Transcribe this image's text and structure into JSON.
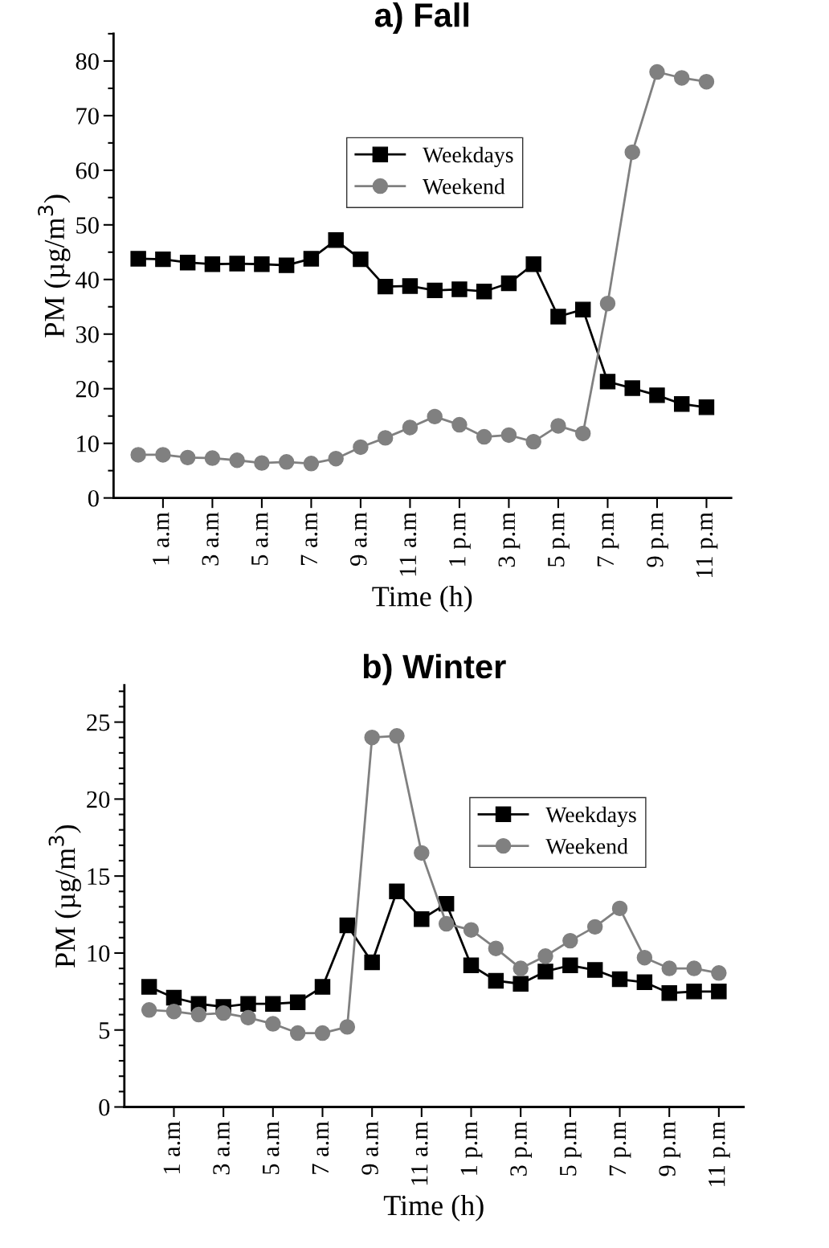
{
  "chart_data": [
    {
      "type": "line",
      "title": "a) Fall",
      "xlabel": "Time (h)",
      "ylabel": "PM (µg/m$^{3}$)",
      "categories": [
        null,
        "1 a.m",
        null,
        "3 a.m",
        null,
        "5 a.m",
        null,
        "7 a.m",
        null,
        "9 a.m",
        null,
        "11 a.m",
        null,
        "1 p.m",
        null,
        "3 p.m",
        null,
        "5 p.m",
        null,
        "7 p.m",
        null,
        "9 p.m",
        null,
        "11 p.m"
      ],
      "series": [
        {
          "name": "Weekdays",
          "color": "#000000",
          "marker": "square",
          "values": [
            43.8,
            43.7,
            43.1,
            42.8,
            42.9,
            42.8,
            42.6,
            43.8,
            47.2,
            43.7,
            38.7,
            38.8,
            38.0,
            38.2,
            37.8,
            39.3,
            42.8,
            33.2,
            34.5,
            21.3,
            20.1,
            18.8,
            17.2,
            16.6
          ]
        },
        {
          "name": "Weekend",
          "color": "#808080",
          "marker": "circle",
          "values": [
            7.9,
            7.9,
            7.4,
            7.3,
            6.9,
            6.4,
            6.6,
            6.3,
            7.2,
            9.3,
            11.0,
            12.9,
            14.9,
            13.4,
            11.2,
            11.5,
            10.3,
            13.2,
            11.8,
            35.6,
            63.3,
            78.0,
            76.9,
            76.2
          ]
        }
      ],
      "ylim": [
        0,
        85
      ],
      "yticks": [
        0,
        {
          "value": 5,
          "label": null
        },
        10,
        {
          "value": 15,
          "label": null
        },
        20,
        {
          "value": 25,
          "label": null
        },
        30,
        {
          "value": 35,
          "label": null
        },
        40,
        {
          "value": 45,
          "label": null
        },
        50,
        {
          "value": 55,
          "label": null
        },
        60,
        {
          "value": 65,
          "label": null
        },
        70,
        {
          "value": 75,
          "label": null
        },
        80,
        {
          "value": 85,
          "label": null
        }
      ],
      "grid": false,
      "legend": "top",
      "line_style": "solid"
    },
    {
      "type": "line",
      "title": "b) Winter",
      "xlabel": "Time (h)",
      "ylabel": "PM (µg/m$^{3}$)",
      "categories": [
        null,
        "1 a.m",
        null,
        "3 a.m",
        null,
        "5 a.m",
        null,
        "7 a.m",
        null,
        "9 a.m",
        null,
        "11 a.m",
        null,
        "1 p.m",
        null,
        "3 p.m",
        null,
        "5 p.m",
        null,
        "7 p.m",
        null,
        "9 p.m",
        null,
        "11 p.m"
      ],
      "series": [
        {
          "name": "Weekdays",
          "color": "#000000",
          "marker": "square",
          "values": [
            7.8,
            7.1,
            6.7,
            6.5,
            6.7,
            6.7,
            6.8,
            7.8,
            11.8,
            9.4,
            14.0,
            12.2,
            13.2,
            9.2,
            8.2,
            8.0,
            8.8,
            9.2,
            8.9,
            8.3,
            8.1,
            7.4,
            7.5,
            7.5
          ]
        },
        {
          "name": "Weekend",
          "color": "#808080",
          "marker": "circle",
          "values": [
            6.3,
            6.2,
            6.0,
            6.1,
            5.8,
            5.4,
            4.8,
            4.8,
            5.2,
            24.0,
            24.1,
            16.5,
            11.9,
            11.5,
            10.3,
            9.0,
            9.8,
            10.8,
            11.7,
            12.9,
            9.7,
            9.0,
            9.0,
            8.7
          ]
        }
      ],
      "ylim": [
        0,
        27.4
      ],
      "yticks": [
        0,
        {
          "value": 1,
          "label": null
        },
        {
          "value": 2,
          "label": null
        },
        {
          "value": 3,
          "label": null
        },
        {
          "value": 4,
          "label": null
        },
        5,
        {
          "value": 6,
          "label": null
        },
        {
          "value": 7,
          "label": null
        },
        {
          "value": 8,
          "label": null
        },
        {
          "value": 9,
          "label": null
        },
        10,
        {
          "value": 11,
          "label": null
        },
        {
          "value": 12,
          "label": null
        },
        {
          "value": 13,
          "label": null
        },
        {
          "value": 14,
          "label": null
        },
        15,
        {
          "value": 16,
          "label": null
        },
        {
          "value": 17,
          "label": null
        },
        {
          "value": 18,
          "label": null
        },
        {
          "value": 19,
          "label": null
        },
        20,
        {
          "value": 21,
          "label": null
        },
        {
          "value": 22,
          "label": null
        },
        {
          "value": 23,
          "label": null
        },
        {
          "value": 24,
          "label": null
        },
        25,
        {
          "value": 26,
          "label": null
        },
        {
          "value": 27,
          "label": null
        }
      ],
      "grid": false,
      "legend": "top right",
      "line_style": "solid"
    }
  ]
}
